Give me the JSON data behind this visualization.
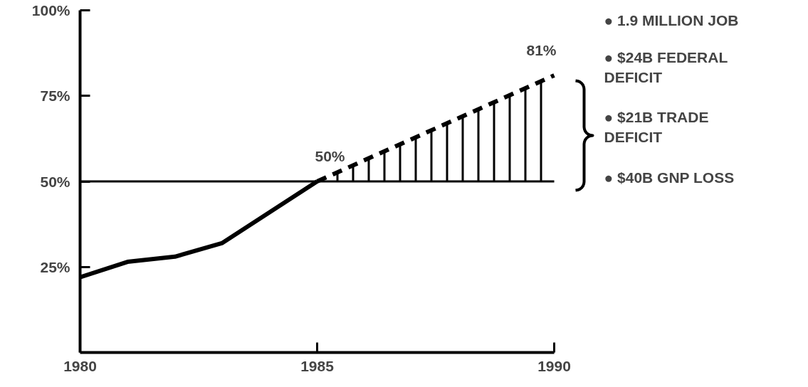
{
  "chart_data": {
    "type": "line",
    "x": [
      1980,
      1981,
      1982,
      1983,
      1984,
      1985
    ],
    "series": [
      {
        "color": "#000000",
        "values": [
          22,
          26.5,
          28,
          32,
          41,
          50
        ],
        "line_style": "solid"
      },
      {
        "color": "#000000",
        "x": [
          1985,
          1990
        ],
        "values": [
          50,
          81
        ],
        "type": "area",
        "line_style": "dashed"
      }
    ],
    "xlim": [
      1980,
      1990
    ],
    "ylim": [
      0,
      100
    ],
    "xticks": [
      1980,
      1985,
      1990
    ],
    "yticks": [
      {
        "value": 25,
        "label": "25%"
      },
      {
        "value": 50,
        "label": "50%"
      },
      {
        "value": 75,
        "label": "75%"
      },
      {
        "value": 100,
        "label": "100%"
      }
    ],
    "ref_lines": [
      {
        "axis": "y",
        "value": 50,
        "color": "#000000"
      }
    ],
    "annotations": [
      {
        "text": "50%",
        "x": 1985,
        "y": 50
      },
      {
        "text": "81%",
        "x": 1990,
        "y": 81
      },
      "● 1.9 MILLION JOB",
      "● $24B FEDERAL\nDEFICIT",
      "● $21B TRADE\nDEFICIT",
      "● $40B GNP LOSS"
    ],
    "grid": false,
    "marker": "none"
  }
}
